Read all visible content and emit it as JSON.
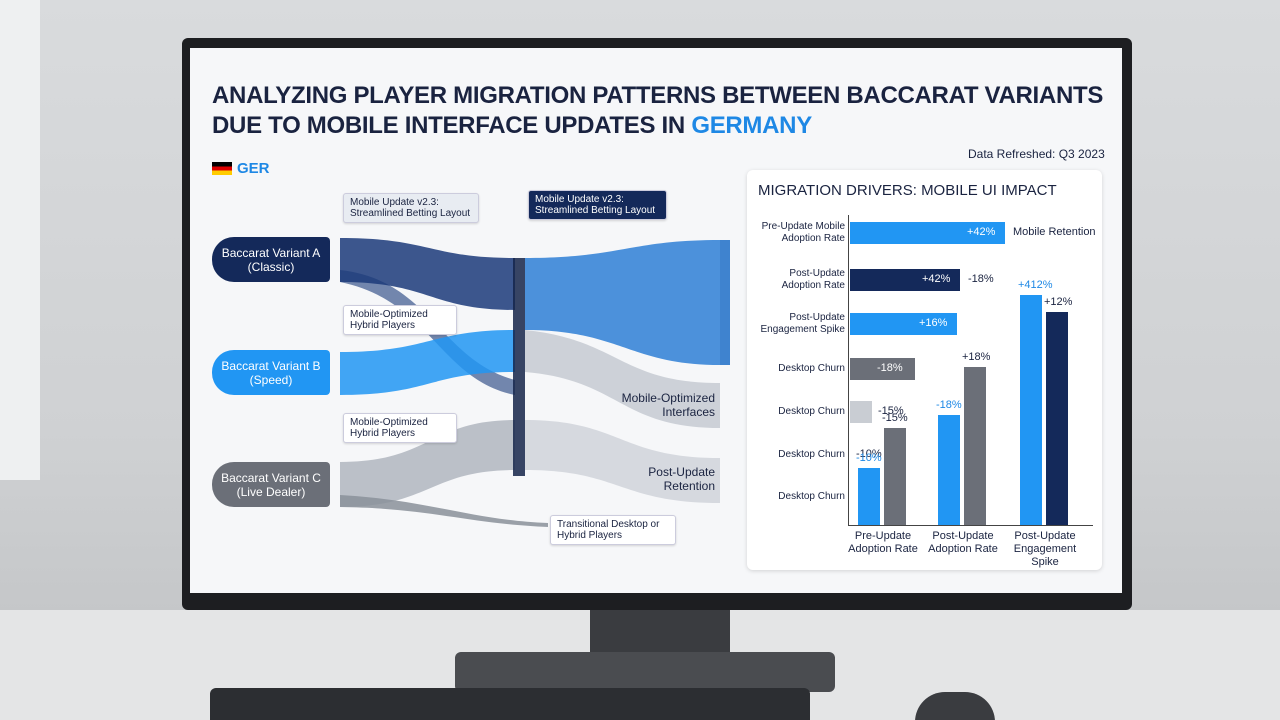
{
  "header": {
    "title_line1": "ANALYZING PLAYER MIGRATION PATTERNS BETWEEN BACCARAT VARIANTS",
    "title_line2": "DUE TO MOBILE INTERFACE UPDATES IN",
    "title_highlight": "GERMANY",
    "country": "GER",
    "refreshed": "Data Refreshed: Q3 2023"
  },
  "sankey": {
    "sources": [
      "Baccarat Variant A (Classic)",
      "Baccarat Variant B (Speed)",
      "Baccarat Variant C (Live Dealer)"
    ],
    "updates": [
      "Mobile Update v2.3: Streamlined Betting Layout",
      "Mobile Update v2.3: Streamlined Betting Layout"
    ],
    "callouts": [
      "Mobile-Optimized Hybrid Players",
      "Mobile-Optimized Hybrid Players",
      "Transitional Desktop or Hybrid Players"
    ],
    "targets": [
      "Mobile-Optimized Interfaces",
      "Post-Update Retention"
    ]
  },
  "drivers": {
    "title": "MIGRATION DRIVERS: MOBILE UI IMPACT",
    "rows": [
      {
        "label": "Pre-Update Mobile Adoption Rate",
        "value_label": "+42%",
        "note": "Mobile Retention"
      },
      {
        "label": "Post-Update Adoption Rate",
        "value_label": "+42%",
        "note": "-18%"
      },
      {
        "label": "Post-Update Engagement Spike",
        "value_label": "+16%"
      },
      {
        "label": "Desktop Churn",
        "value_label": "-18%"
      },
      {
        "label": "Desktop Churn",
        "value_label": "-15%"
      },
      {
        "label": "Desktop Churn",
        "value_label": "-10%"
      },
      {
        "label": "Desktop Churn"
      }
    ],
    "columns": [
      {
        "category": "Pre-Update Adoption Rate",
        "bar_labels": [
          "-10%",
          "-15%"
        ]
      },
      {
        "category": "Post-Update Adoption Rate",
        "bar_labels": [
          "-18%",
          "+18%"
        ]
      },
      {
        "category": "Post-Update Engagement Spike",
        "bar_labels": [
          "+412%",
          "+12%"
        ]
      }
    ]
  }
}
